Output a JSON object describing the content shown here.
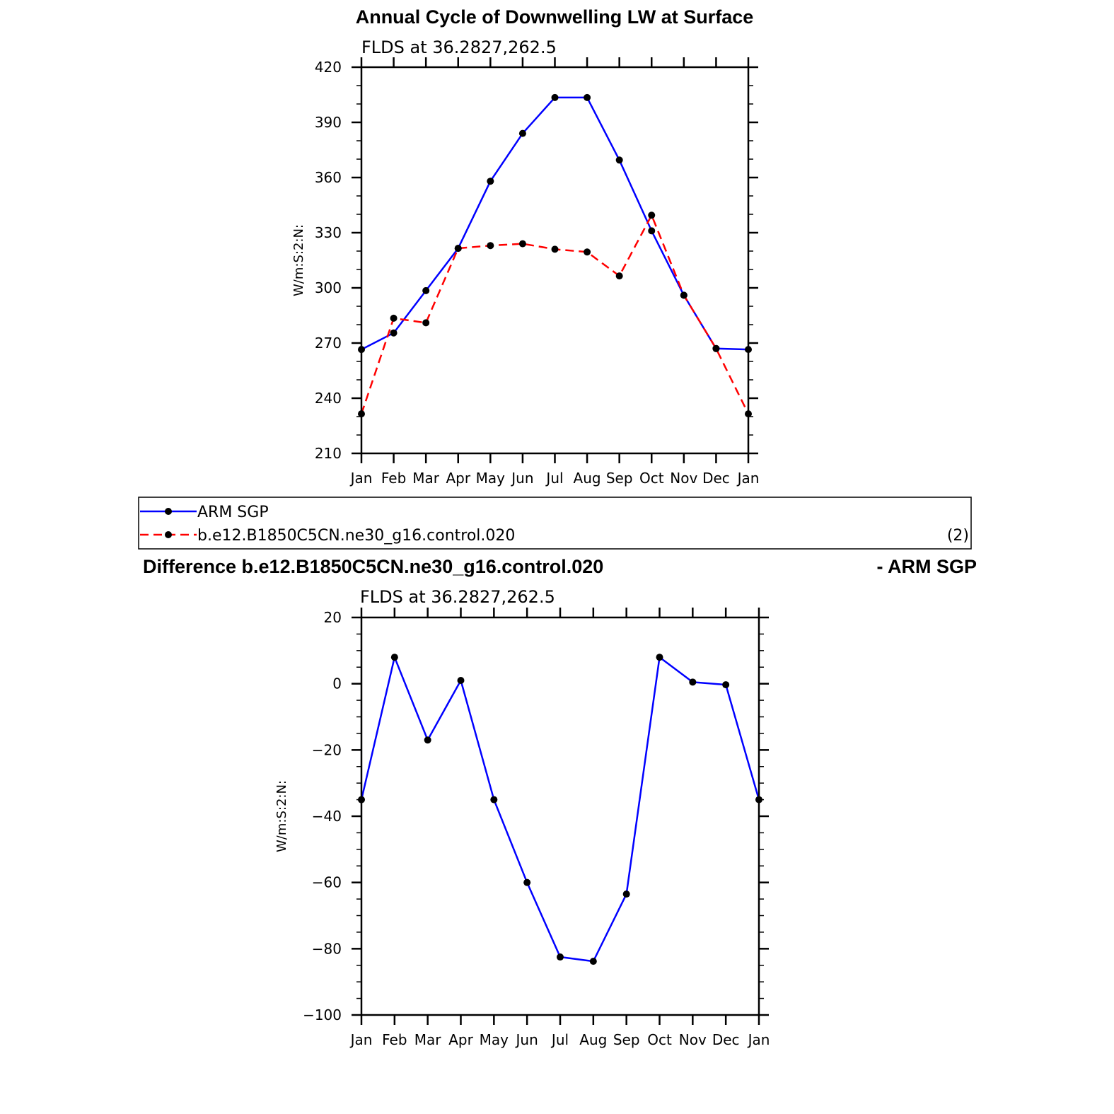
{
  "chart_data": [
    {
      "type": "line",
      "title": "Annual Cycle of Downwelling LW at Surface",
      "subtitle": "FLDS at 36.2827,262.5",
      "ylabel": "W/m:S:2:N:",
      "categories": [
        "Jan",
        "Feb",
        "Mar",
        "Apr",
        "May",
        "Jun",
        "Jul",
        "Aug",
        "Sep",
        "Oct",
        "Nov",
        "Dec",
        "Jan"
      ],
      "ylim": [
        210,
        420
      ],
      "yticks": [
        "210",
        "240",
        "270",
        "300",
        "330",
        "360",
        "390",
        "420"
      ],
      "series": [
        {
          "name": "ARM SGP",
          "color": "#0000ff",
          "dash": "solid",
          "values": [
            266.5,
            275.5,
            298.5,
            321.5,
            358.0,
            384.0,
            403.5,
            403.5,
            369.5,
            331.0,
            296.0,
            267.0,
            266.5
          ]
        },
        {
          "name": "b.e12.B1850C5CN.ne30_g16.control.020",
          "color": "#ff0000",
          "dash": "dashed",
          "values": [
            231.5,
            283.5,
            281.0,
            321.5,
            323.0,
            324.0,
            321.0,
            319.5,
            306.5,
            339.5,
            296.0,
            267.0,
            231.5
          ]
        }
      ],
      "legend_note": "(2)",
      "legend_placement": "below"
    },
    {
      "type": "line",
      "title": "Difference b.e12.B1850C5CN.ne30_g16.control.020",
      "title_right": "- ARM SGP",
      "subtitle": "FLDS at 36.2827,262.5",
      "ylabel": "W/m:S:2:N:",
      "categories": [
        "Jan",
        "Feb",
        "Mar",
        "Apr",
        "May",
        "Jun",
        "Jul",
        "Aug",
        "Sep",
        "Oct",
        "Nov",
        "Dec",
        "Jan"
      ],
      "ylim": [
        -100,
        20
      ],
      "yticks": [
        "−100",
        "−80",
        "−60",
        "−40",
        "−20",
        "0",
        "20"
      ],
      "series": [
        {
          "color": "#0000ff",
          "dash": "solid",
          "values": [
            -35.0,
            8.0,
            -17.0,
            1.0,
            -35.0,
            -60.0,
            -82.5,
            -83.8,
            -63.5,
            8.0,
            0.5,
            -0.3,
            -35.0
          ]
        }
      ]
    }
  ]
}
